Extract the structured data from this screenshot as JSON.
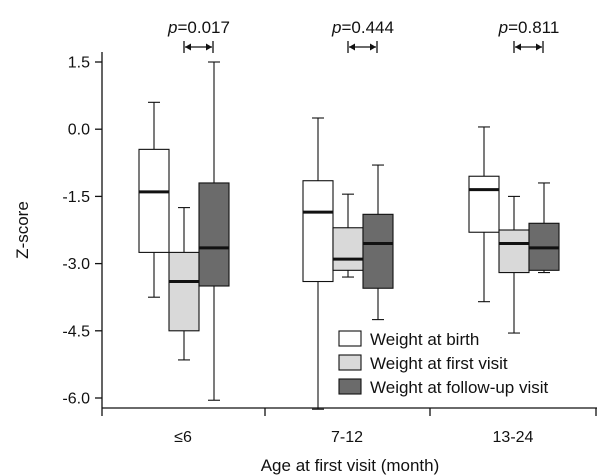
{
  "chart_data": {
    "type": "boxplot",
    "title": "",
    "xlabel": "Age at first visit (month)",
    "ylabel": "Z-score",
    "ylim": [
      -6.2,
      1.6
    ],
    "yticks": [
      "1.5",
      "0.0",
      "-1.5",
      "-3.0",
      "-4.5",
      "-6.0"
    ],
    "ytick_values": [
      1.5,
      0.0,
      -1.5,
      -3.0,
      -4.5,
      -6.0
    ],
    "categories": [
      "≤6",
      "7-12",
      "13-24"
    ],
    "series": [
      {
        "name": "Weight at birth",
        "color": "#ffffff"
      },
      {
        "name": "Weight at first visit",
        "color": "#d9d9d9"
      },
      {
        "name": "Weight at follow-up visit",
        "color": "#6b6b6b"
      }
    ],
    "boxes": [
      [
        {
          "min": -3.75,
          "q1": -2.75,
          "median": -1.4,
          "q3": -0.45,
          "max": 0.6
        },
        {
          "min": -5.15,
          "q1": -4.5,
          "median": -3.4,
          "q3": -2.75,
          "max": -1.75
        },
        {
          "min": -6.05,
          "q1": -3.5,
          "median": -2.65,
          "q3": -1.2,
          "max": 1.5
        }
      ],
      [
        {
          "min": -6.25,
          "q1": -3.4,
          "median": -1.85,
          "q3": -1.15,
          "max": 0.25
        },
        {
          "min": -3.3,
          "q1": -3.15,
          "median": -2.9,
          "q3": -2.2,
          "max": -1.45
        },
        {
          "min": -4.25,
          "q1": -3.55,
          "median": -2.55,
          "q3": -1.9,
          "max": -0.8
        }
      ],
      [
        {
          "min": -3.85,
          "q1": -2.3,
          "median": -1.35,
          "q3": -1.05,
          "max": 0.05
        },
        {
          "min": -4.55,
          "q1": -3.2,
          "median": -2.55,
          "q3": -2.25,
          "max": -1.5
        },
        {
          "min": -3.2,
          "q1": -3.15,
          "median": -2.65,
          "q3": -2.1,
          "max": -1.2
        }
      ]
    ],
    "pvalues": [
      {
        "p_label": "p",
        "value_text": "=0.017"
      },
      {
        "p_label": "p",
        "value_text": "=0.444"
      },
      {
        "p_label": "p",
        "value_text": "=0.811"
      }
    ],
    "legend_position": "bottom-right",
    "grid": false
  }
}
